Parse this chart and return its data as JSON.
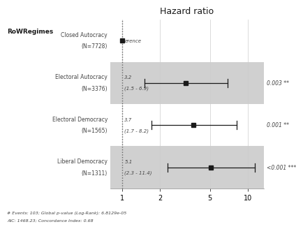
{
  "title": "Hazard ratio",
  "rows": [
    {
      "label": "Closed Autocracy\n(N=7728)",
      "hr": 1.0,
      "ci_low": 1.0,
      "ci_high": 1.0,
      "note_line1": "",
      "note_line2": "erence",
      "pval": "",
      "is_reference": true,
      "shaded": false
    },
    {
      "label": "Electoral Autocracy\n(N=3376)",
      "hr": 3.2,
      "ci_low": 1.5,
      "ci_high": 6.9,
      "note_line1": "3.2",
      "note_line2": "(1.5 - 6.9)",
      "pval": "0.003 **",
      "is_reference": false,
      "shaded": true
    },
    {
      "label": "Electoral Democracy\n(N=1565)",
      "hr": 3.7,
      "ci_low": 1.7,
      "ci_high": 8.2,
      "note_line1": "3.7",
      "note_line2": "(1.7 - 8.2)",
      "pval": "0.001 **",
      "is_reference": false,
      "shaded": false
    },
    {
      "label": "Liberal Democracy\n(N=1311)",
      "hr": 5.1,
      "ci_low": 2.3,
      "ci_high": 11.4,
      "note_line1": "5.1",
      "note_line2": "(2.3 - 11.4)",
      "pval": "<0.001 ***",
      "is_reference": false,
      "shaded": true
    }
  ],
  "row_label": "RoWRegimes",
  "footnote1": "# Events: 103; Global p-value (Log-Rank): 6.8129e-05",
  "footnote2": "AIC: 1468.23; Concordance Index: 0.68",
  "xticks": [
    1,
    2,
    5,
    10
  ],
  "xmin": 0.8,
  "xmax": 13.5,
  "shaded_color": "#d0d0d0",
  "marker_color": "#1a1a1a",
  "line_color": "#1a1a1a",
  "ref_line_x": 1.0
}
